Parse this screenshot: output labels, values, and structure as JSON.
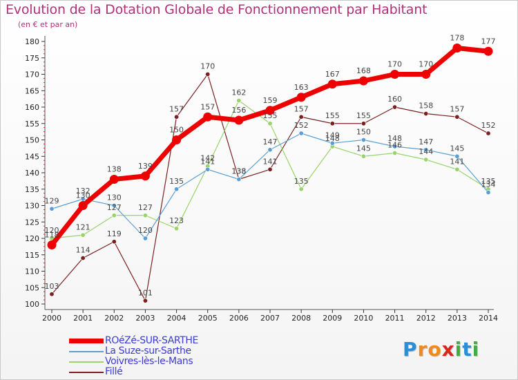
{
  "chart_data": {
    "type": "line",
    "title": "Evolution de la Dotation Globale de Fonctionnement par Habitant",
    "subtitle": "(en € et par an)",
    "categories": [
      "2000",
      "2001",
      "2002",
      "2003",
      "2004",
      "2005",
      "2006",
      "2007",
      "2008",
      "2009",
      "2010",
      "2011",
      "2012",
      "2013",
      "2014"
    ],
    "ylim": [
      100,
      180
    ],
    "yticks": [
      100,
      105,
      110,
      115,
      120,
      125,
      130,
      135,
      140,
      145,
      150,
      155,
      160,
      165,
      170,
      175,
      180
    ],
    "grid": false,
    "legend_position": "bottom-left",
    "series": [
      {
        "name": "Fillé",
        "color": "#7a2020",
        "label_color": "#444444",
        "width": 1.2,
        "values": [
          103,
          114,
          119,
          101,
          157,
          170,
          138,
          141,
          157,
          155,
          155,
          160,
          158,
          157,
          152
        ]
      },
      {
        "name": "Voivres-lès-le-Mans",
        "color": "#99d36a",
        "label_color": "#444444",
        "width": 1.2,
        "values": [
          120,
          121,
          127,
          127,
          123,
          142,
          162,
          155,
          135,
          148,
          145,
          146,
          144,
          141,
          135
        ]
      },
      {
        "name": "La Suze-sur-Sarthe",
        "color": "#5a9fd4",
        "label_color": "#444444",
        "width": 1.2,
        "values": [
          129,
          132,
          130,
          120,
          135,
          141,
          138,
          147,
          152,
          149,
          150,
          148,
          147,
          145,
          134
        ]
      },
      {
        "name": "ROéZé-SUR-SARTHE",
        "color": "#ee0000",
        "label_color": "#444444",
        "width": 7,
        "values": [
          118,
          130,
          138,
          139,
          150,
          157,
          156,
          159,
          163,
          167,
          168,
          170,
          170,
          178,
          177
        ]
      }
    ]
  },
  "legend": {
    "items": [
      {
        "name": "ROéZé-SUR-SARTHE",
        "color": "#ee0000",
        "thick": true
      },
      {
        "name": "La Suze-sur-Sarthe",
        "color": "#5a9fd4",
        "thick": false
      },
      {
        "name": "Voivres-lès-le-Mans",
        "color": "#99d36a",
        "thick": false
      },
      {
        "name": "Fillé",
        "color": "#7a2020",
        "thick": false
      }
    ],
    "text_color": "#3a3ad4"
  },
  "logo": {
    "letters": [
      "P",
      "r",
      "o",
      "x",
      "i",
      "t",
      "i"
    ],
    "colors": [
      "#2a8fd8",
      "#f08a1c",
      "#f08a1c",
      "#d8261c",
      "#3fae3f",
      "#2a8fd8",
      "#3fae3f"
    ]
  }
}
